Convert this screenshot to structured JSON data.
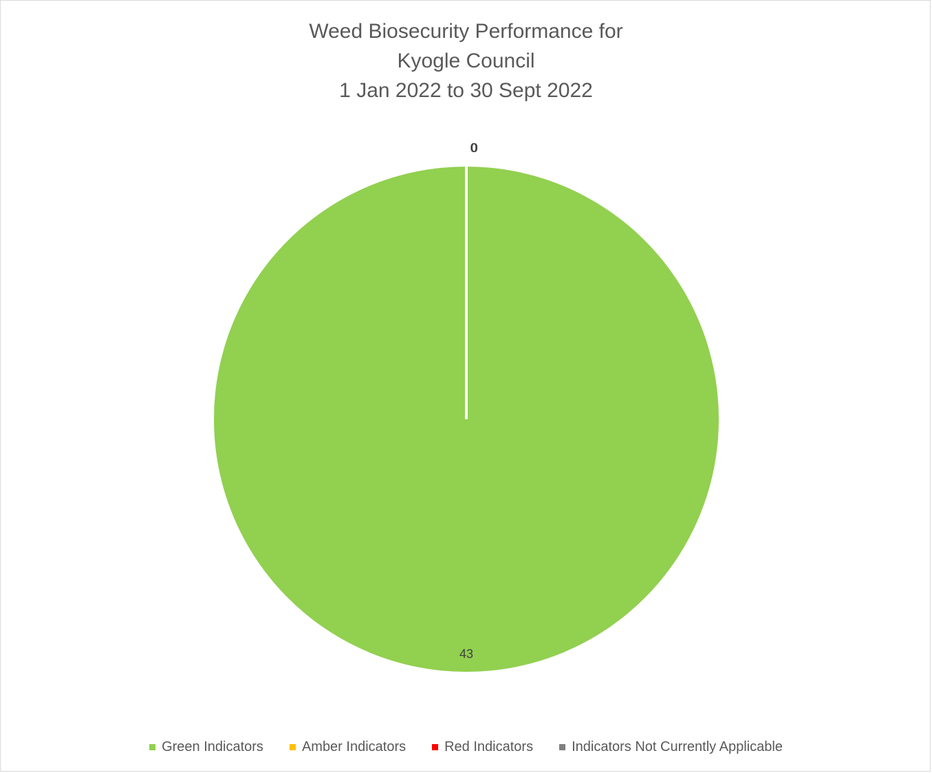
{
  "chart_data": {
    "type": "pie",
    "title_lines": [
      "Weed Biosecurity Performance for",
      "Kyogle Council",
      "1 Jan 2022 to 30 Sept 2022"
    ],
    "categories": [
      "Green Indicators",
      "Amber Indicators",
      "Red Indicators",
      "Indicators Not Currently Applicable"
    ],
    "values": [
      43,
      0,
      0,
      0
    ],
    "colors": [
      "#92d050",
      "#ffc000",
      "#ff0000",
      "#7f7f7f"
    ],
    "data_labels": [
      "43",
      "0",
      "0",
      "0"
    ],
    "legend_position": "bottom"
  }
}
